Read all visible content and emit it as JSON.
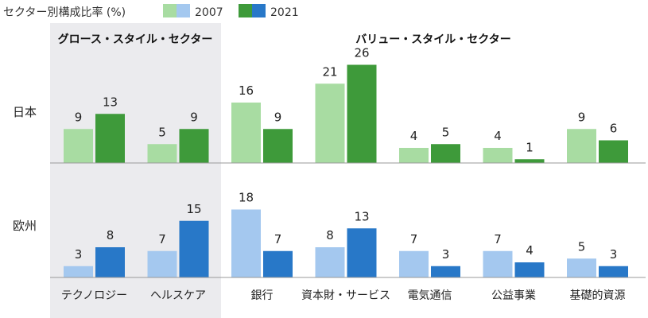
{
  "chart_data": {
    "type": "bar",
    "title": "セクター別構成比率 (%)",
    "legend": {
      "placement": "top-left",
      "entries": [
        "2007",
        "2021"
      ]
    },
    "group_labels": [
      "グロース・スタイル・セクター",
      "バリュー・スタイル・セクター"
    ],
    "categories": [
      "テクノロジー",
      "ヘルスケア",
      "銀行",
      "資本財・サービス",
      "電気通信",
      "公益事業",
      "基礎的資源"
    ],
    "panels": [
      {
        "name": "日本",
        "series": [
          {
            "name": "2007",
            "values": [
              9,
              5,
              16,
              21,
              4,
              4,
              9
            ]
          },
          {
            "name": "2021",
            "values": [
              13,
              9,
              9,
              26,
              5,
              1,
              6
            ]
          }
        ]
      },
      {
        "name": "欧州",
        "series": [
          {
            "name": "2007",
            "values": [
              3,
              7,
              18,
              8,
              7,
              7,
              5
            ]
          },
          {
            "name": "2021",
            "values": [
              8,
              15,
              7,
              13,
              3,
              4,
              3
            ]
          }
        ]
      }
    ],
    "colors": {
      "japan_2007": "#a8dca2",
      "japan_2021": "#3e9a3a",
      "europe_2007": "#a4c8ef",
      "europe_2021": "#2878c8",
      "growth_shade": "#ebebee",
      "baseline": "#999999"
    },
    "grid": false
  }
}
